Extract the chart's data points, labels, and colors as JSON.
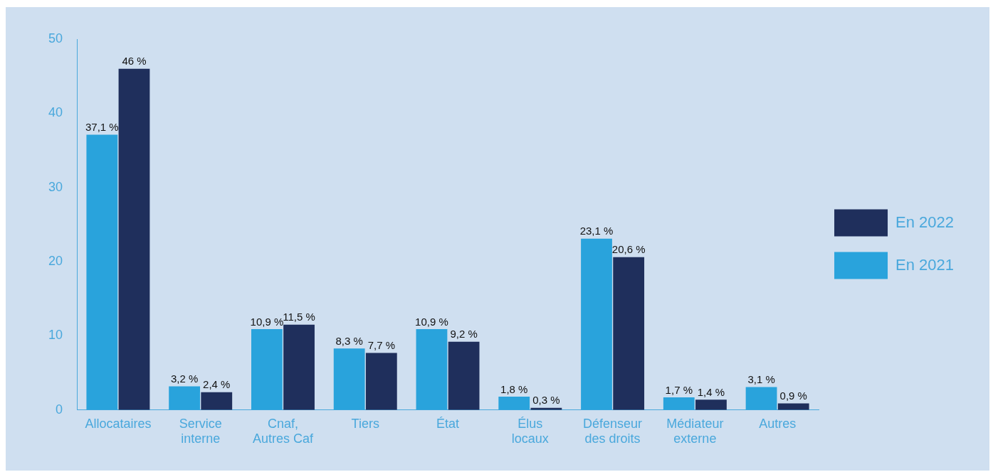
{
  "chart_data": {
    "type": "bar",
    "categories": [
      "Allocataires",
      "Service interne",
      "Cnaf, Autres Caf",
      "Tiers",
      "État",
      "Élus locaux",
      "Défenseur des droits",
      "Médiateur externe",
      "Autres"
    ],
    "series": [
      {
        "name": "En 2021",
        "color": "#29a3dc",
        "values": [
          37.1,
          3.2,
          10.9,
          8.3,
          10.9,
          1.8,
          23.1,
          1.7,
          3.1
        ],
        "value_labels": [
          "37,1 %",
          "3,2 %",
          "10,9 %",
          "8,3 %",
          "10,9 %",
          "1,8 %",
          "23,1 %",
          "1,7 %",
          "3,1 %"
        ]
      },
      {
        "name": "En 2022",
        "color": "#1f2f5c",
        "values": [
          46,
          2.4,
          11.5,
          7.7,
          9.2,
          0.3,
          20.6,
          1.4,
          0.9
        ],
        "value_labels": [
          "46 %",
          "2,4 %",
          "11,5 %",
          "7,7 %",
          "9,2 %",
          "0,3 %",
          "20,6 %",
          "1,4 %",
          "0,9 %"
        ]
      }
    ],
    "ylim": [
      0,
      50
    ],
    "yticks": [
      0,
      10,
      20,
      30,
      40,
      50
    ],
    "grid": false,
    "legend": "right"
  }
}
